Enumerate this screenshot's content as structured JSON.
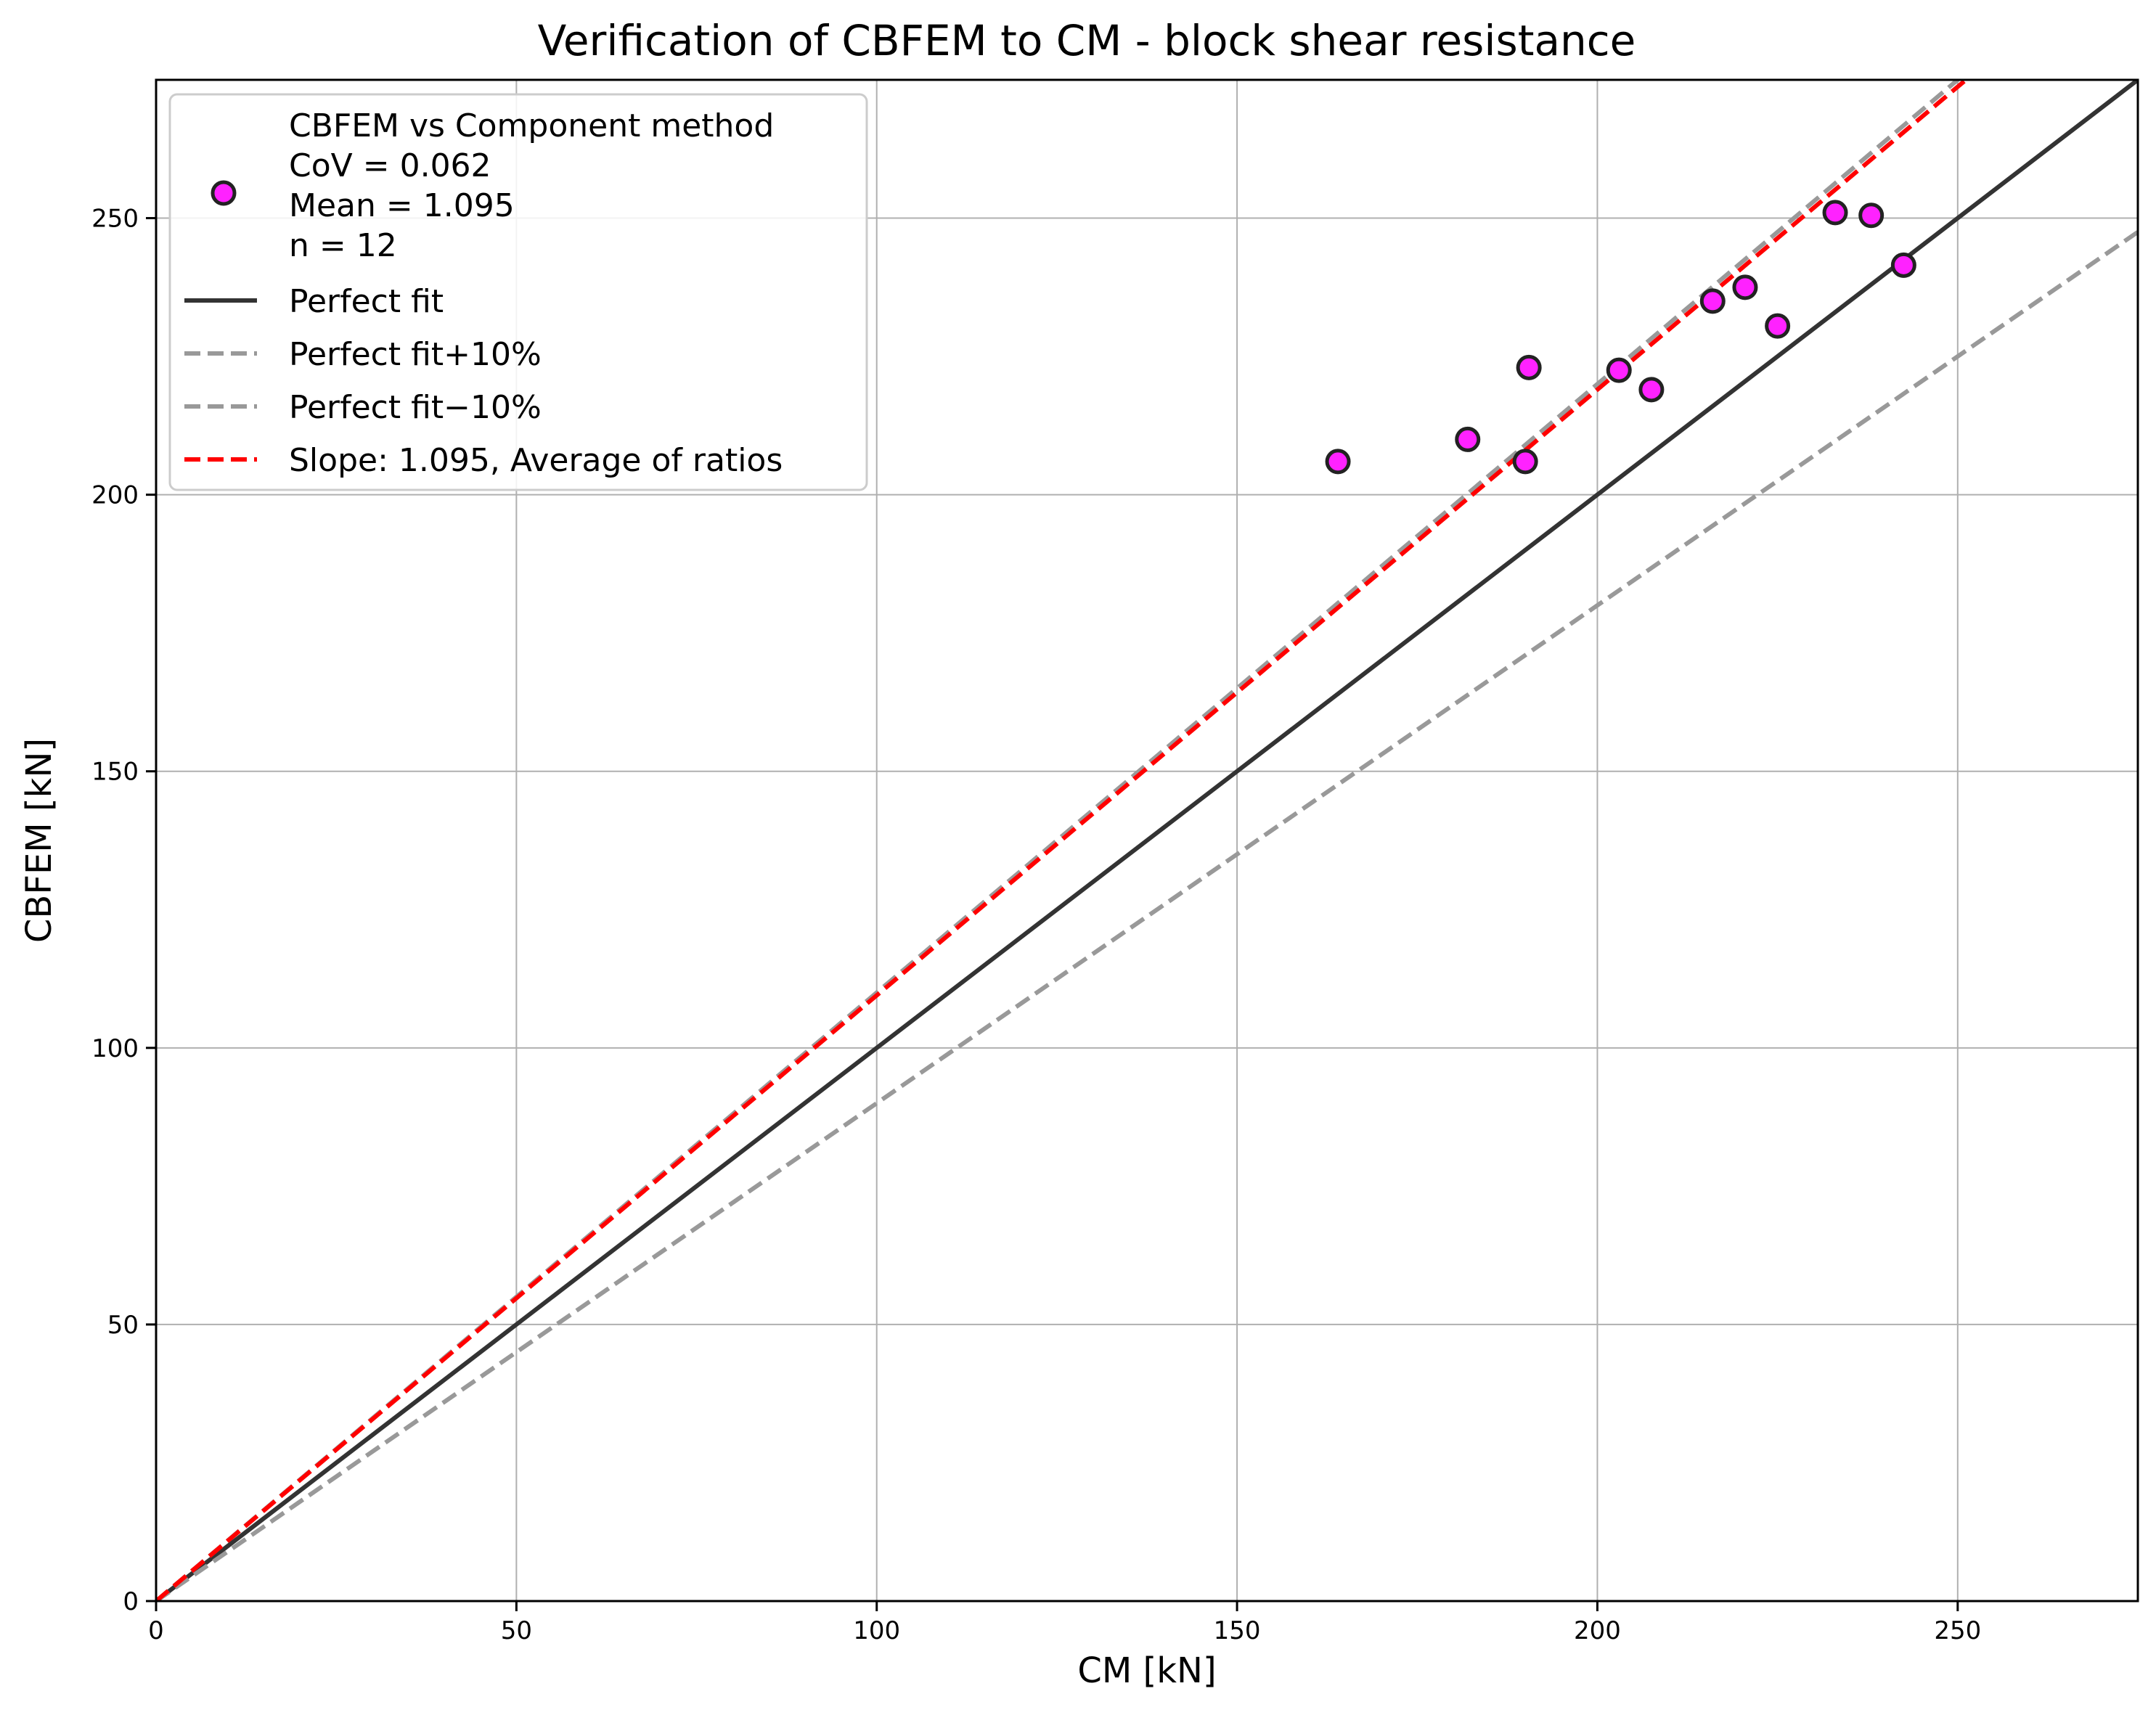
{
  "chart_data": {
    "type": "scatter",
    "title": "Verification of CBFEM to CM - block shear resistance",
    "xlabel": "CM [kN]",
    "ylabel": "CBFEM [kN]",
    "xlim": [
      0,
      275
    ],
    "ylim": [
      0,
      275
    ],
    "xticks": [
      0,
      50,
      100,
      150,
      200,
      250
    ],
    "yticks": [
      0,
      50,
      100,
      150,
      200,
      250
    ],
    "grid": true,
    "legend_position": "top-left",
    "series": [
      {
        "name": "CBFEM vs Component method",
        "kind": "scatter",
        "color": "#ff22ff",
        "edge_color": "#222222",
        "points": [
          {
            "x": 164,
            "y": 206
          },
          {
            "x": 182,
            "y": 210
          },
          {
            "x": 190,
            "y": 206
          },
          {
            "x": 190.5,
            "y": 223
          },
          {
            "x": 203,
            "y": 222.5
          },
          {
            "x": 207.5,
            "y": 219
          },
          {
            "x": 216,
            "y": 235
          },
          {
            "x": 220.5,
            "y": 237.5
          },
          {
            "x": 225,
            "y": 230.5
          },
          {
            "x": 233,
            "y": 251
          },
          {
            "x": 238,
            "y": 250.5
          },
          {
            "x": 242.5,
            "y": 241.5
          }
        ]
      },
      {
        "name": "Perfect fit",
        "kind": "line",
        "slope": 1.0,
        "color": "#333333",
        "dash": "solid"
      },
      {
        "name": "Perfect fit+10%",
        "kind": "line",
        "slope": 1.1,
        "color": "#999999",
        "dash": "dashed"
      },
      {
        "name": "Perfect fit−10%",
        "kind": "line",
        "slope": 0.9,
        "color": "#999999",
        "dash": "dashed"
      },
      {
        "name": "Slope: 1.095, Average of ratios",
        "kind": "line",
        "slope": 1.095,
        "color": "#ff0000",
        "dash": "dashed"
      }
    ],
    "stats": {
      "cov": "CoV = 0.062",
      "mean": "Mean = 1.095",
      "n": "n = 12"
    }
  }
}
